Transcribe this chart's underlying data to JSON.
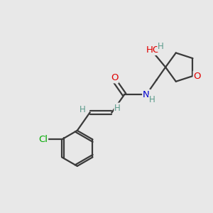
{
  "background_color": "#e8e8e8",
  "bond_color": "#3a3a3a",
  "atom_colors": {
    "O": "#e00000",
    "N": "#0000cd",
    "Cl": "#00aa00",
    "H": "#5a9a8a"
  },
  "figsize": [
    3.0,
    3.0
  ],
  "dpi": 100
}
